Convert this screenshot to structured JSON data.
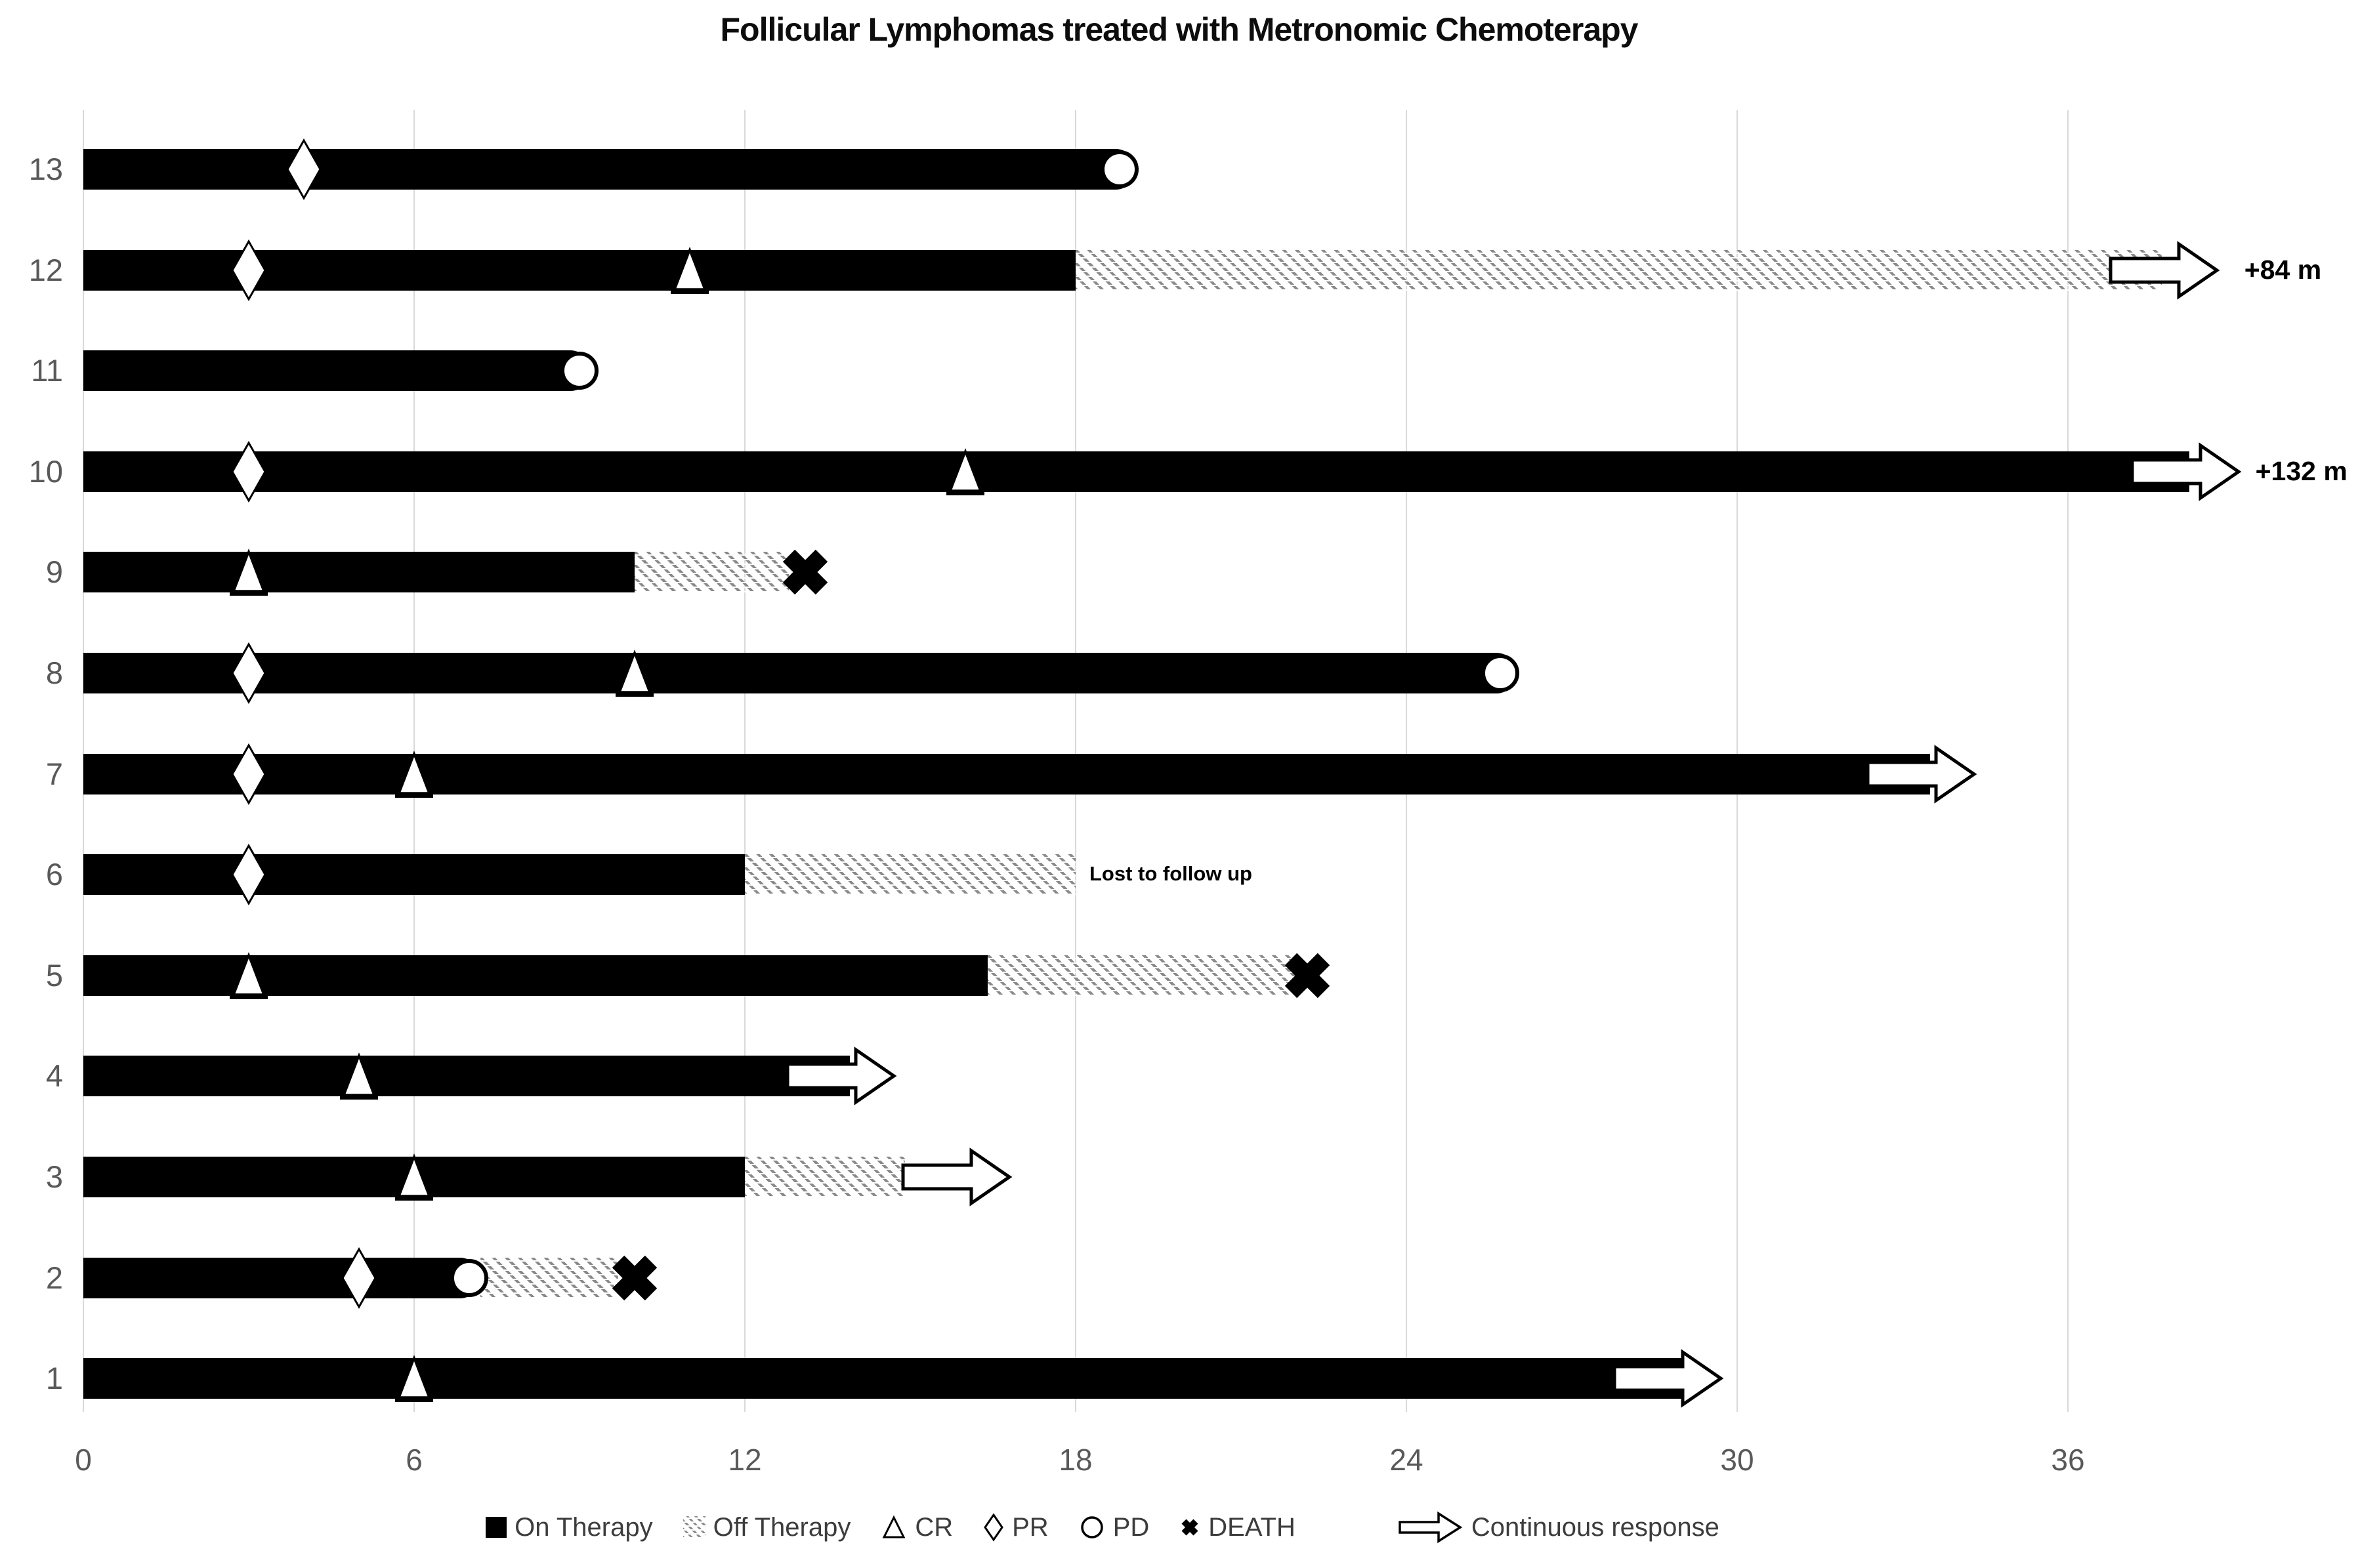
{
  "title": "Follicular Lymphomas treated with Metronomic Chemoterapy",
  "colors": {
    "bar_on": "#000000",
    "hatch": "#8a8a8a",
    "gridline": "#d9d9d9",
    "axis_text": "#595959",
    "legend_text": "#3d3d3d"
  },
  "legend": [
    {
      "icon": "on-therapy-swatch",
      "label": "On Therapy"
    },
    {
      "icon": "off-therapy-swatch",
      "label": "Off Therapy"
    },
    {
      "icon": "cr-triangle",
      "label": "CR"
    },
    {
      "icon": "pr-diamond",
      "label": "PR"
    },
    {
      "icon": "pd-circle",
      "label": "PD"
    },
    {
      "icon": "death-x",
      "label": "DEATH"
    },
    {
      "icon": "continuous-response-arrow",
      "label": "Continuous response"
    }
  ],
  "chart_data": {
    "type": "swimmer",
    "title": "Follicular Lymphomas treated with Metronomic Chemoterapy",
    "x_axis": {
      "ticks": [
        0,
        6,
        12,
        18,
        24,
        30,
        36
      ],
      "unit": "months",
      "max": 41.2,
      "grid": true
    },
    "y_axis": {
      "categories_top_to_bottom": [
        "13",
        "12",
        "11",
        "10",
        "9",
        "8",
        "7",
        "6",
        "5",
        "4",
        "3",
        "2",
        "1"
      ]
    },
    "patients": [
      {
        "id": "13",
        "segments": [
          {
            "therapy": "on",
            "start": 0,
            "end": 19.1,
            "round_end": true
          }
        ],
        "markers": [
          {
            "type": "PR",
            "month": 4
          },
          {
            "type": "PD",
            "month": 18.8
          }
        ]
      },
      {
        "id": "12",
        "segments": [
          {
            "therapy": "on",
            "start": 0,
            "end": 18
          },
          {
            "therapy": "off",
            "start": 18,
            "end": 37.7
          }
        ],
        "markers": [
          {
            "type": "PR",
            "month": 3
          },
          {
            "type": "CR",
            "month": 11
          },
          {
            "type": "arrow",
            "month": 38.7
          }
        ],
        "note": {
          "text": "+84 m",
          "month": 39.2
        }
      },
      {
        "id": "11",
        "segments": [
          {
            "therapy": "on",
            "start": 0,
            "end": 9.2,
            "round_end": true
          }
        ],
        "markers": [
          {
            "type": "PD",
            "month": 9
          }
        ]
      },
      {
        "id": "10",
        "segments": [
          {
            "therapy": "on",
            "start": 0,
            "end": 38.2
          }
        ],
        "markers": [
          {
            "type": "PR",
            "month": 3
          },
          {
            "type": "CR",
            "month": 16
          },
          {
            "type": "arrow",
            "month": 39.1
          }
        ],
        "note": {
          "text": "+132 m",
          "month": 39.4
        }
      },
      {
        "id": "9",
        "segments": [
          {
            "therapy": "on",
            "start": 0,
            "end": 10
          },
          {
            "therapy": "off",
            "start": 10,
            "end": 12.8
          }
        ],
        "markers": [
          {
            "type": "CR",
            "month": 3
          },
          {
            "type": "DEATH",
            "month": 13.1
          }
        ]
      },
      {
        "id": "8",
        "segments": [
          {
            "therapy": "on",
            "start": 0,
            "end": 26,
            "round_end": true
          }
        ],
        "markers": [
          {
            "type": "PR",
            "month": 3
          },
          {
            "type": "CR",
            "month": 10
          },
          {
            "type": "PD",
            "month": 25.7
          }
        ]
      },
      {
        "id": "7",
        "segments": [
          {
            "therapy": "on",
            "start": 0,
            "end": 33.5
          }
        ],
        "markers": [
          {
            "type": "PR",
            "month": 3
          },
          {
            "type": "CR",
            "month": 6
          },
          {
            "type": "arrow",
            "month": 34.3
          }
        ]
      },
      {
        "id": "6",
        "segments": [
          {
            "therapy": "on",
            "start": 0,
            "end": 12
          },
          {
            "therapy": "off",
            "start": 12,
            "end": 18
          }
        ],
        "markers": [
          {
            "type": "PR",
            "month": 3
          }
        ],
        "note": {
          "text": "Lost to follow up",
          "month": 18.25
        }
      },
      {
        "id": "5",
        "segments": [
          {
            "therapy": "on",
            "start": 0,
            "end": 16.4
          },
          {
            "therapy": "off",
            "start": 16.4,
            "end": 22
          }
        ],
        "markers": [
          {
            "type": "CR",
            "month": 3
          },
          {
            "type": "DEATH",
            "month": 22.2
          }
        ]
      },
      {
        "id": "4",
        "segments": [
          {
            "therapy": "on",
            "start": 0,
            "end": 13.9
          }
        ],
        "markers": [
          {
            "type": "CR",
            "month": 5
          },
          {
            "type": "arrow",
            "month": 14.7
          }
        ]
      },
      {
        "id": "3",
        "segments": [
          {
            "therapy": "on",
            "start": 0,
            "end": 12
          },
          {
            "therapy": "off",
            "start": 12,
            "end": 14.9
          }
        ],
        "markers": [
          {
            "type": "CR",
            "month": 6
          },
          {
            "type": "arrow",
            "month": 16.8
          }
        ]
      },
      {
        "id": "2",
        "segments": [
          {
            "therapy": "on",
            "start": 0,
            "end": 7.2,
            "round_end": true
          },
          {
            "therapy": "off",
            "start": 7.2,
            "end": 9.7
          }
        ],
        "markers": [
          {
            "type": "PR",
            "month": 5
          },
          {
            "type": "PD",
            "month": 7
          },
          {
            "type": "DEATH",
            "month": 10
          }
        ]
      },
      {
        "id": "1",
        "segments": [
          {
            "therapy": "on",
            "start": 0,
            "end": 29
          }
        ],
        "markers": [
          {
            "type": "CR",
            "month": 6
          },
          {
            "type": "arrow",
            "month": 29.7
          }
        ]
      }
    ]
  }
}
